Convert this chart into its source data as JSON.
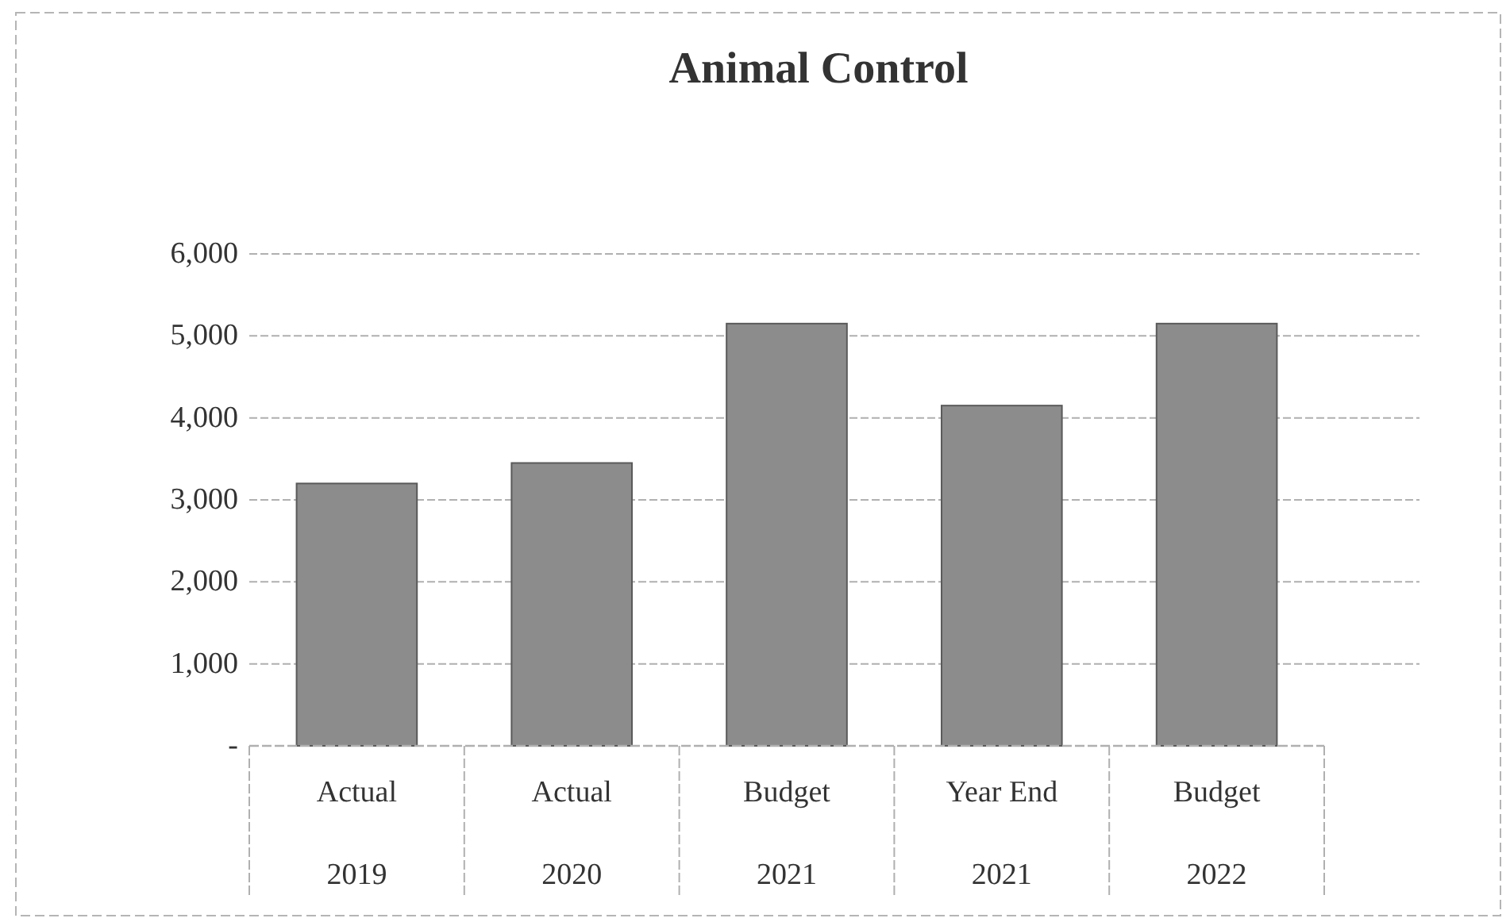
{
  "chart_data": {
    "type": "bar",
    "title": "Animal Control",
    "categories": [
      "Actual\n2019",
      "Actual\n2020",
      "Budget\n2021",
      "Year End\n2021",
      "Budget\n2022"
    ],
    "values": [
      3200,
      3450,
      5150,
      4150,
      5150
    ],
    "color": "#8c8c8c",
    "ylim": [
      0,
      6000
    ],
    "yticks": [
      {
        "value": 0,
        "label": "-"
      },
      {
        "value": 1000,
        "label": "1,000"
      },
      {
        "value": 2000,
        "label": "2,000"
      },
      {
        "value": 3000,
        "label": "3,000"
      },
      {
        "value": 4000,
        "label": "4,000"
      },
      {
        "value": 5000,
        "label": "5,000"
      },
      {
        "value": 6000,
        "label": "6,000"
      }
    ],
    "grid": "y"
  }
}
